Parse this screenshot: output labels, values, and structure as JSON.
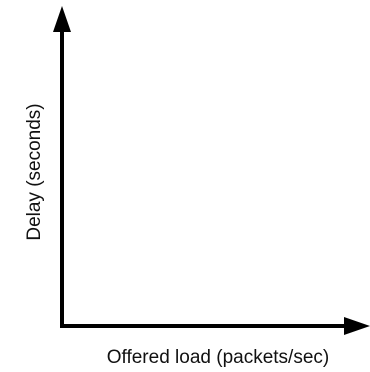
{
  "chart_data": {
    "type": "line",
    "title": "",
    "xlabel": "Offered load (packets/sec)",
    "ylabel": "Delay (seconds)",
    "series": [],
    "grid": false,
    "legend": "none",
    "x_ticks": [],
    "y_ticks": []
  },
  "colors": {
    "axis": "#000000",
    "text": "#111111",
    "background": "#ffffff"
  }
}
